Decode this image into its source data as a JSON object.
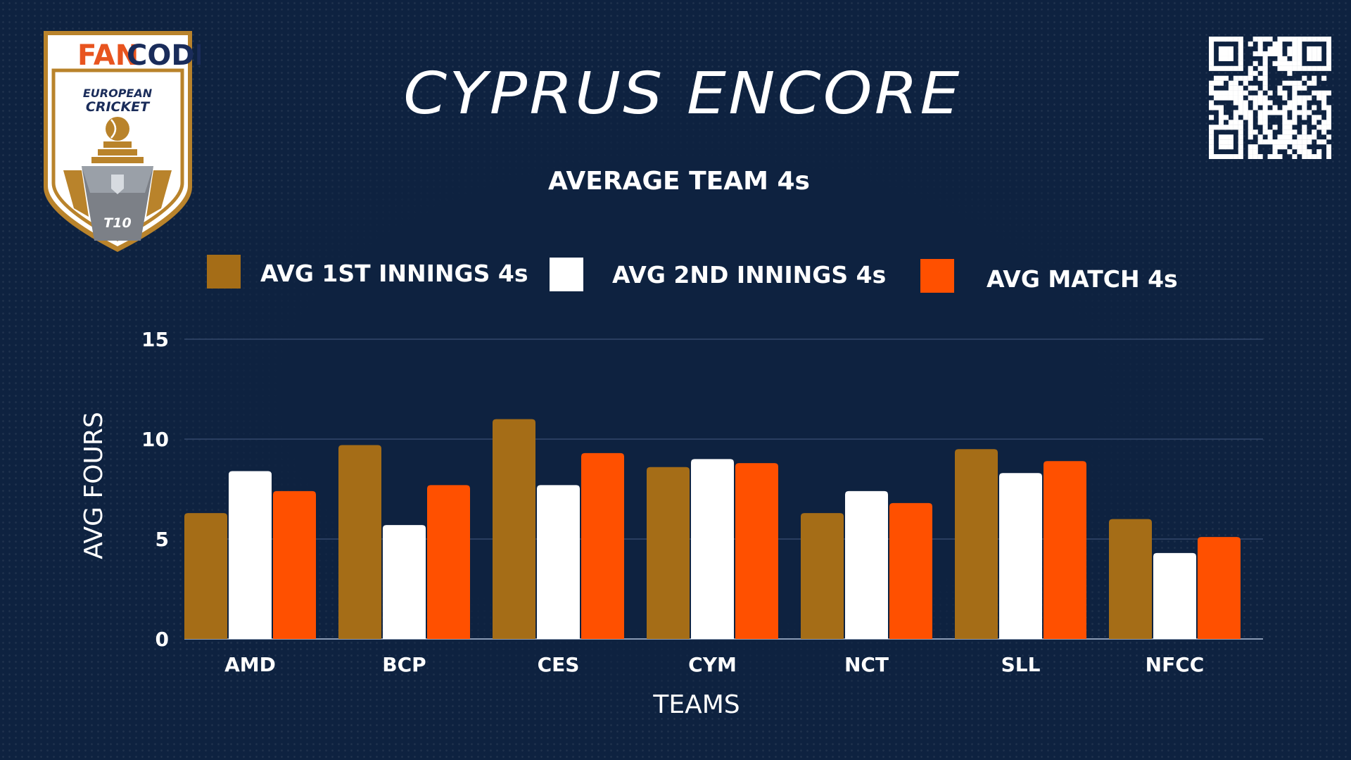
{
  "page": {
    "title": "CYPRUS ENCORE",
    "subtitle": "AVERAGE TEAM 4s"
  },
  "logo": {
    "brand_left": "FAN",
    "brand_right": "CODE",
    "line1": "EUROPEAN",
    "line2": "CRICKET",
    "badge": "T10"
  },
  "qr": {
    "icon": "qr-code-icon"
  },
  "colors": {
    "background": "#0e2240",
    "series1": "#a56d17",
    "series2": "#ffffff",
    "series3": "#ff5000",
    "grid": "#33486a",
    "logo_gold": "#b9832b",
    "logo_orange": "#e8541f",
    "logo_navy": "#1a2c5a"
  },
  "chart_data": {
    "type": "bar",
    "title": "AVERAGE TEAM 4s",
    "xlabel": "TEAMS",
    "ylabel": "AVG FOURS",
    "categories": [
      "AMD",
      "BCP",
      "CES",
      "CYM",
      "NCT",
      "SLL",
      "NFCC"
    ],
    "series": [
      {
        "name": "AVG 1ST INNINGS 4s",
        "color": "#a56d17",
        "values": [
          6.3,
          9.7,
          11.0,
          8.6,
          6.3,
          9.5,
          6.0
        ]
      },
      {
        "name": "AVG 2ND INNINGS 4s",
        "color": "#ffffff",
        "values": [
          8.4,
          5.7,
          7.7,
          9.0,
          7.4,
          8.3,
          4.3
        ]
      },
      {
        "name": "AVG MATCH 4s",
        "color": "#ff5000",
        "values": [
          7.4,
          7.7,
          9.3,
          8.8,
          6.8,
          8.9,
          5.1
        ]
      }
    ],
    "yticks": [
      0,
      5,
      10,
      15
    ],
    "ylim": [
      0,
      15
    ],
    "grid": true,
    "legend_position": "top"
  }
}
